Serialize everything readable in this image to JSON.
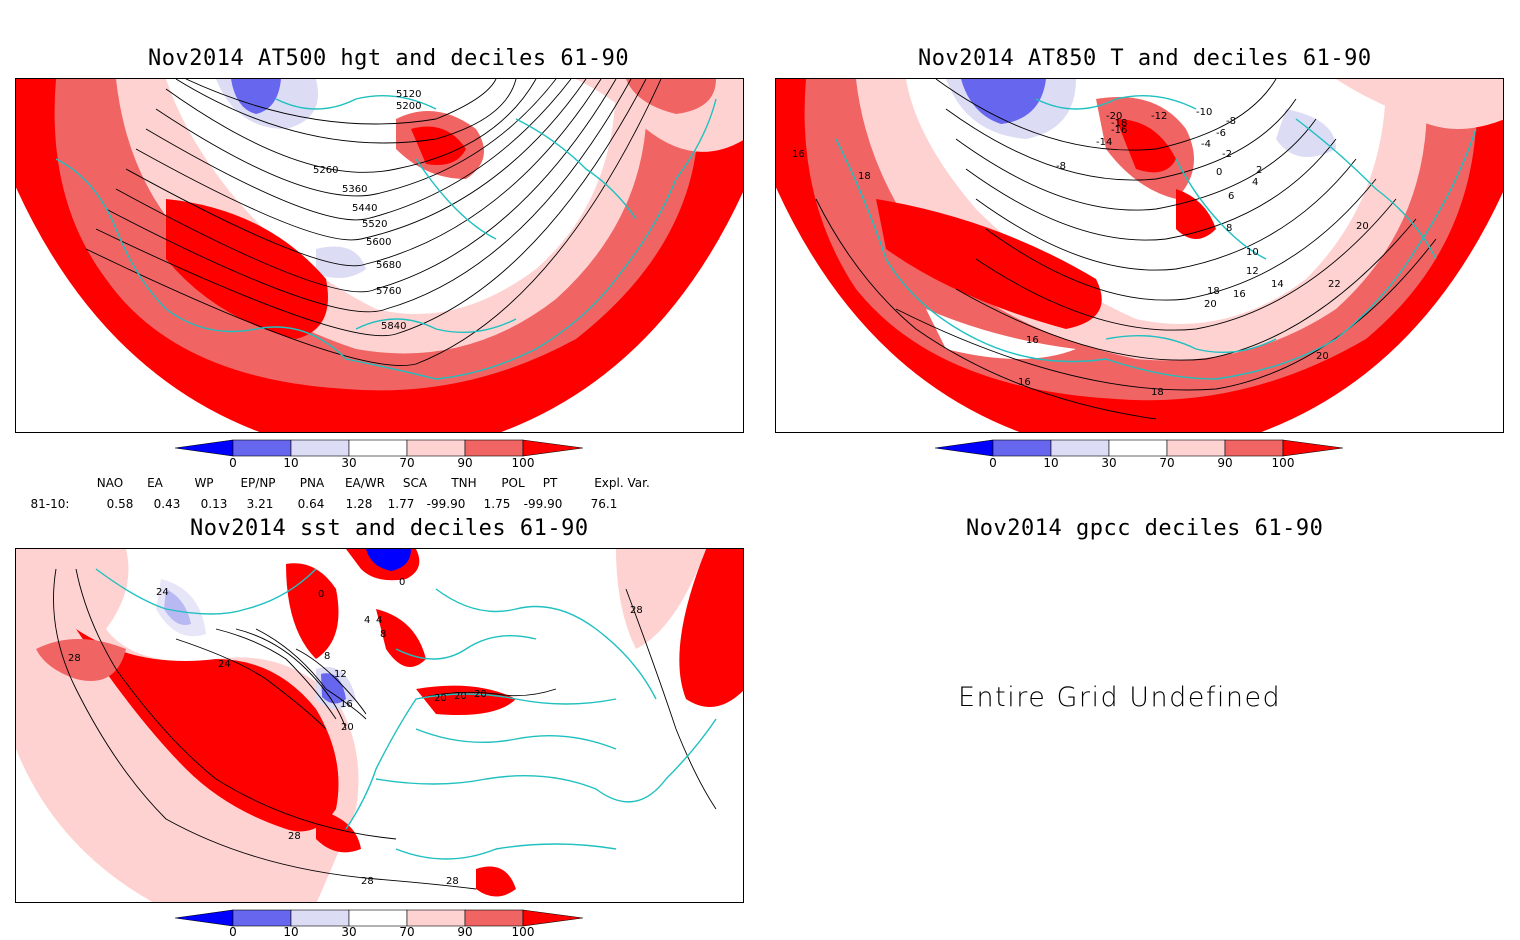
{
  "panels": {
    "hgt500": {
      "title": "Nov2014 AT500 hgt and deciles 61-90",
      "contour_labels": [
        "5120",
        "5200",
        "5260",
        "5360",
        "5440",
        "5520",
        "5600",
        "5680",
        "5760",
        "5840"
      ]
    },
    "t850": {
      "title": "Nov2014 AT850 T and deciles 61-90",
      "contour_labels": [
        "-20",
        "-12",
        "-10",
        "-8",
        "-6",
        "-4",
        "-2",
        "0",
        "2",
        "4",
        "6",
        "8",
        "10",
        "12",
        "14",
        "16",
        "18",
        "20",
        "22",
        "-16",
        "-14",
        "-18",
        "-8",
        "16",
        "18",
        "16",
        "18",
        "20",
        "20",
        "16"
      ]
    },
    "sst": {
      "title": "Nov2014 sst and deciles 61-90",
      "contour_labels": [
        "24",
        "28",
        "24",
        "0",
        "0",
        "4",
        "4",
        "8",
        "8",
        "12",
        "16",
        "20",
        "20",
        "20",
        "20",
        "28",
        "28",
        "28",
        "28"
      ]
    },
    "gpcc": {
      "title": "Nov2014 gpcc deciles 61-90",
      "undefined_text": "Entire Grid Undefined"
    }
  },
  "colorbar": {
    "ticks": [
      "0",
      "10",
      "30",
      "70",
      "90",
      "100"
    ],
    "colors": [
      "#0000ff",
      "#6666ee",
      "#dcdcf5",
      "#ffffff",
      "#ffd2d2",
      "#f06464",
      "#ff0000"
    ]
  },
  "indices": {
    "headers": [
      "NAO",
      "EA",
      "WP",
      "EP/NP",
      "PNA",
      "EA/WR",
      "SCA",
      "TNH",
      "POL",
      "PT",
      "Expl. Var."
    ],
    "row_label": "81-10:",
    "values": [
      "0.58",
      "0.43",
      "0.13",
      "3.21",
      "0.64",
      "1.28",
      "1.77",
      "-99.90",
      "1.75",
      "-99.90",
      "76.1"
    ]
  }
}
